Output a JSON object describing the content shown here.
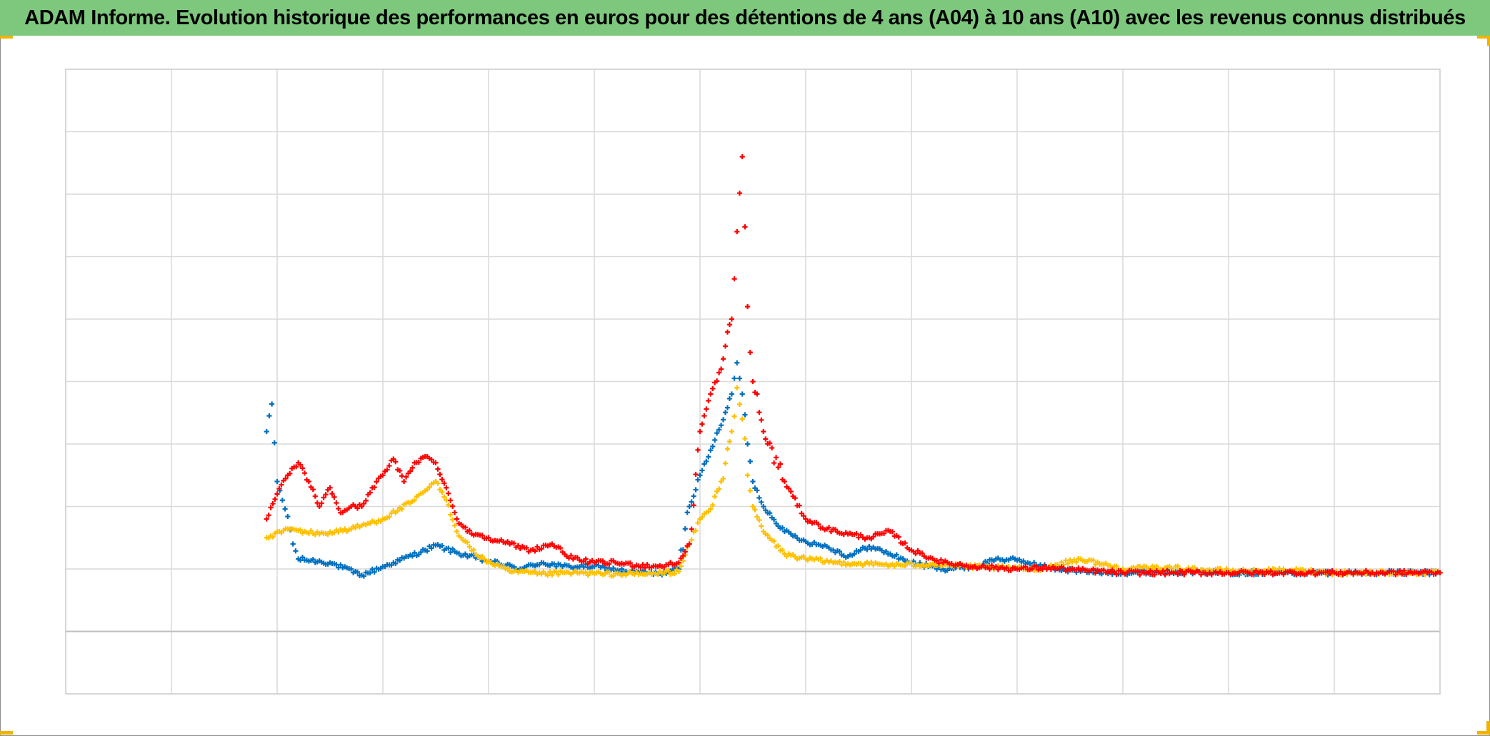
{
  "chart_data": {
    "type": "scatter",
    "title": "ADAM Informe. Evolution historique des performances en euros pour des détentions de 4 ans (A04) à 10 ans (A10) avec les revenus connus distribués",
    "xlabel": "",
    "ylabel": "",
    "xlim": [
      0,
      13
    ],
    "ylim": [
      -5,
      45
    ],
    "x_grid_step": 1,
    "y_grid_step": 5,
    "baseline_y": 0,
    "grid": true,
    "marker": "+",
    "legend": "none",
    "series": [
      {
        "color": "#0070c0",
        "points": [
          [
            1.9,
            16
          ],
          [
            1.95,
            18.2
          ],
          [
            2.0,
            12
          ],
          [
            2.05,
            10.5
          ],
          [
            2.1,
            9.2
          ],
          [
            2.15,
            7
          ],
          [
            2.2,
            5.8
          ],
          [
            2.5,
            5.5
          ],
          [
            2.8,
            4.5
          ],
          [
            3.1,
            5.5
          ],
          [
            3.4,
            6.5
          ],
          [
            3.5,
            6.9
          ],
          [
            3.7,
            6.3
          ],
          [
            4.0,
            5.6
          ],
          [
            4.3,
            5.0
          ],
          [
            4.5,
            5.5
          ],
          [
            4.7,
            5.2
          ],
          [
            5.0,
            5.2
          ],
          [
            5.3,
            4.8
          ],
          [
            5.6,
            4.6
          ],
          [
            5.8,
            5.0
          ],
          [
            5.9,
            10
          ],
          [
            6.0,
            12.5
          ],
          [
            6.1,
            14.5
          ],
          [
            6.2,
            16.5
          ],
          [
            6.3,
            19
          ],
          [
            6.35,
            21.5
          ],
          [
            6.4,
            19
          ],
          [
            6.45,
            15
          ],
          [
            6.5,
            12
          ],
          [
            6.6,
            10
          ],
          [
            6.8,
            8
          ],
          [
            7.0,
            7.2
          ],
          [
            7.2,
            6.8
          ],
          [
            7.4,
            6.0
          ],
          [
            7.6,
            6.8
          ],
          [
            7.8,
            6.2
          ],
          [
            8.0,
            5.5
          ],
          [
            8.3,
            5.0
          ],
          [
            8.6,
            5.2
          ],
          [
            8.8,
            5.8
          ],
          [
            9.0,
            5.7
          ],
          [
            9.3,
            5.1
          ],
          [
            9.6,
            4.8
          ],
          [
            10.0,
            4.7
          ],
          [
            10.5,
            4.8
          ],
          [
            11.0,
            4.7
          ],
          [
            11.5,
            4.7
          ],
          [
            12.0,
            4.7
          ],
          [
            12.5,
            4.7
          ],
          [
            13.0,
            4.7
          ]
        ]
      },
      {
        "color": "#ffc000",
        "points": [
          [
            1.9,
            7.5
          ],
          [
            2.1,
            8.2
          ],
          [
            2.4,
            7.8
          ],
          [
            2.7,
            8.2
          ],
          [
            3.0,
            9.0
          ],
          [
            3.3,
            10.5
          ],
          [
            3.5,
            12.0
          ],
          [
            3.6,
            10.5
          ],
          [
            3.7,
            8.0
          ],
          [
            3.9,
            6.0
          ],
          [
            4.2,
            4.8
          ],
          [
            4.5,
            4.6
          ],
          [
            4.8,
            4.7
          ],
          [
            5.1,
            4.6
          ],
          [
            5.5,
            4.6
          ],
          [
            5.8,
            4.8
          ],
          [
            5.9,
            7.0
          ],
          [
            6.0,
            9.0
          ],
          [
            6.1,
            9.8
          ],
          [
            6.2,
            12.0
          ],
          [
            6.3,
            16.0
          ],
          [
            6.35,
            19.5
          ],
          [
            6.4,
            17.0
          ],
          [
            6.45,
            12.5
          ],
          [
            6.5,
            10.0
          ],
          [
            6.6,
            8.0
          ],
          [
            6.8,
            6.2
          ],
          [
            7.0,
            5.8
          ],
          [
            7.3,
            5.5
          ],
          [
            7.6,
            5.4
          ],
          [
            7.9,
            5.3
          ],
          [
            8.2,
            5.4
          ],
          [
            8.5,
            5.2
          ],
          [
            8.8,
            5.1
          ],
          [
            9.2,
            5.0
          ],
          [
            9.6,
            5.8
          ],
          [
            10.0,
            5.0
          ],
          [
            10.4,
            5.1
          ],
          [
            10.8,
            4.9
          ],
          [
            11.2,
            4.8
          ],
          [
            11.6,
            4.9
          ],
          [
            12.0,
            4.7
          ],
          [
            12.5,
            4.7
          ],
          [
            13.0,
            4.7
          ]
        ]
      },
      {
        "color": "#ff0000",
        "points": [
          [
            1.9,
            9.0
          ],
          [
            2.0,
            11.0
          ],
          [
            2.1,
            12.5
          ],
          [
            2.2,
            13.5
          ],
          [
            2.3,
            12.0
          ],
          [
            2.4,
            10.0
          ],
          [
            2.5,
            11.5
          ],
          [
            2.6,
            9.5
          ],
          [
            2.7,
            10.0
          ],
          [
            2.8,
            10.0
          ],
          [
            2.9,
            11.5
          ],
          [
            3.0,
            12.5
          ],
          [
            3.1,
            13.8
          ],
          [
            3.2,
            12.0
          ],
          [
            3.3,
            13.5
          ],
          [
            3.4,
            14.0
          ],
          [
            3.5,
            13.5
          ],
          [
            3.6,
            11.5
          ],
          [
            3.7,
            9.0
          ],
          [
            3.8,
            8.0
          ],
          [
            4.0,
            7.5
          ],
          [
            4.2,
            7.0
          ],
          [
            4.4,
            6.5
          ],
          [
            4.6,
            7.0
          ],
          [
            4.8,
            5.8
          ],
          [
            5.0,
            5.5
          ],
          [
            5.2,
            5.5
          ],
          [
            5.4,
            5.3
          ],
          [
            5.6,
            5.2
          ],
          [
            5.8,
            5.5
          ],
          [
            5.9,
            7.0
          ],
          [
            6.0,
            16.0
          ],
          [
            6.1,
            19.0
          ],
          [
            6.2,
            21.0
          ],
          [
            6.3,
            25.0
          ],
          [
            6.35,
            32.0
          ],
          [
            6.4,
            38.0
          ],
          [
            6.45,
            26.0
          ],
          [
            6.5,
            20.0
          ],
          [
            6.6,
            16.0
          ],
          [
            6.8,
            12.0
          ],
          [
            7.0,
            9.0
          ],
          [
            7.2,
            8.2
          ],
          [
            7.4,
            7.8
          ],
          [
            7.6,
            7.5
          ],
          [
            7.8,
            8.0
          ],
          [
            8.0,
            6.5
          ],
          [
            8.3,
            5.5
          ],
          [
            8.6,
            5.2
          ],
          [
            9.0,
            5.0
          ],
          [
            9.3,
            5.1
          ],
          [
            9.6,
            4.9
          ],
          [
            10.0,
            4.7
          ],
          [
            10.5,
            4.7
          ],
          [
            11.0,
            4.7
          ],
          [
            11.5,
            4.7
          ],
          [
            12.0,
            4.7
          ],
          [
            12.5,
            4.7
          ],
          [
            13.0,
            4.7
          ]
        ]
      }
    ]
  }
}
